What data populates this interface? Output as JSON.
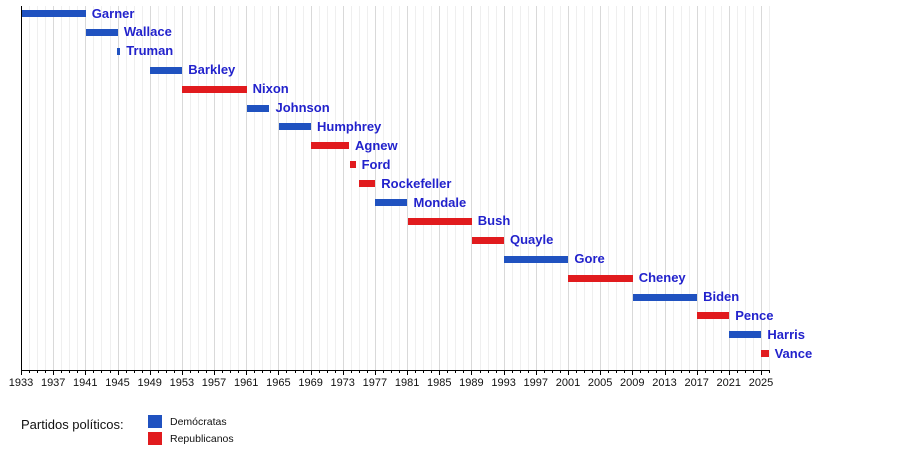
{
  "chart_data": {
    "type": "bar",
    "variant": "gantt-timeline",
    "title": "",
    "xlabel": "",
    "ylabel": "",
    "x_axis": {
      "min": 1933,
      "max": 2026,
      "major_tick_interval": 4,
      "minor_tick_interval": 1,
      "tick_labels": [
        "1933",
        "1937",
        "1941",
        "1945",
        "1949",
        "1953",
        "1957",
        "1961",
        "1965",
        "1969",
        "1973",
        "1977",
        "1981",
        "1985",
        "1989",
        "1993",
        "1997",
        "2001",
        "2005",
        "2009",
        "2013",
        "2017",
        "2021",
        "2025"
      ]
    },
    "grid": "on",
    "legend_position": "bottom-left",
    "colors": {
      "Demócratas": "#2052c0",
      "Republicanos": "#e11b1e"
    },
    "bars": [
      {
        "label": "Garner",
        "party": "Demócratas",
        "start": 1933.0,
        "end": 1941.05
      },
      {
        "label": "Wallace",
        "party": "Demócratas",
        "start": 1941.05,
        "end": 1945.05
      },
      {
        "label": "Truman",
        "party": "Demócratas",
        "start": 1945.05,
        "end": 1945.28
      },
      {
        "label": "Barkley",
        "party": "Demócratas",
        "start": 1949.05,
        "end": 1953.05
      },
      {
        "label": "Nixon",
        "party": "Republicanos",
        "start": 1953.05,
        "end": 1961.05
      },
      {
        "label": "Johnson",
        "party": "Demócratas",
        "start": 1961.05,
        "end": 1963.9
      },
      {
        "label": "Humphrey",
        "party": "Demócratas",
        "start": 1965.05,
        "end": 1969.05
      },
      {
        "label": "Agnew",
        "party": "Republicanos",
        "start": 1969.05,
        "end": 1973.78
      },
      {
        "label": "Ford",
        "party": "Republicanos",
        "start": 1973.93,
        "end": 1974.6
      },
      {
        "label": "Rockefeller",
        "party": "Republicanos",
        "start": 1974.97,
        "end": 1977.05
      },
      {
        "label": "Mondale",
        "party": "Demócratas",
        "start": 1977.05,
        "end": 1981.05
      },
      {
        "label": "Bush",
        "party": "Republicanos",
        "start": 1981.05,
        "end": 1989.05
      },
      {
        "label": "Quayle",
        "party": "Republicanos",
        "start": 1989.05,
        "end": 1993.05
      },
      {
        "label": "Gore",
        "party": "Demócratas",
        "start": 1993.05,
        "end": 2001.05
      },
      {
        "label": "Cheney",
        "party": "Republicanos",
        "start": 2001.05,
        "end": 2009.05
      },
      {
        "label": "Biden",
        "party": "Demócratas",
        "start": 2009.05,
        "end": 2017.05
      },
      {
        "label": "Pence",
        "party": "Republicanos",
        "start": 2017.05,
        "end": 2021.05
      },
      {
        "label": "Harris",
        "party": "Demócratas",
        "start": 2021.05,
        "end": 2025.05
      },
      {
        "label": "Vance",
        "party": "Republicanos",
        "start": 2025.05,
        "end": 2025.95
      }
    ],
    "legend": {
      "title": "Partidos políticos:",
      "entries": [
        {
          "label": "Demócratas",
          "color": "#2052c0"
        },
        {
          "label": "Republicanos",
          "color": "#e11b1e"
        }
      ]
    }
  }
}
